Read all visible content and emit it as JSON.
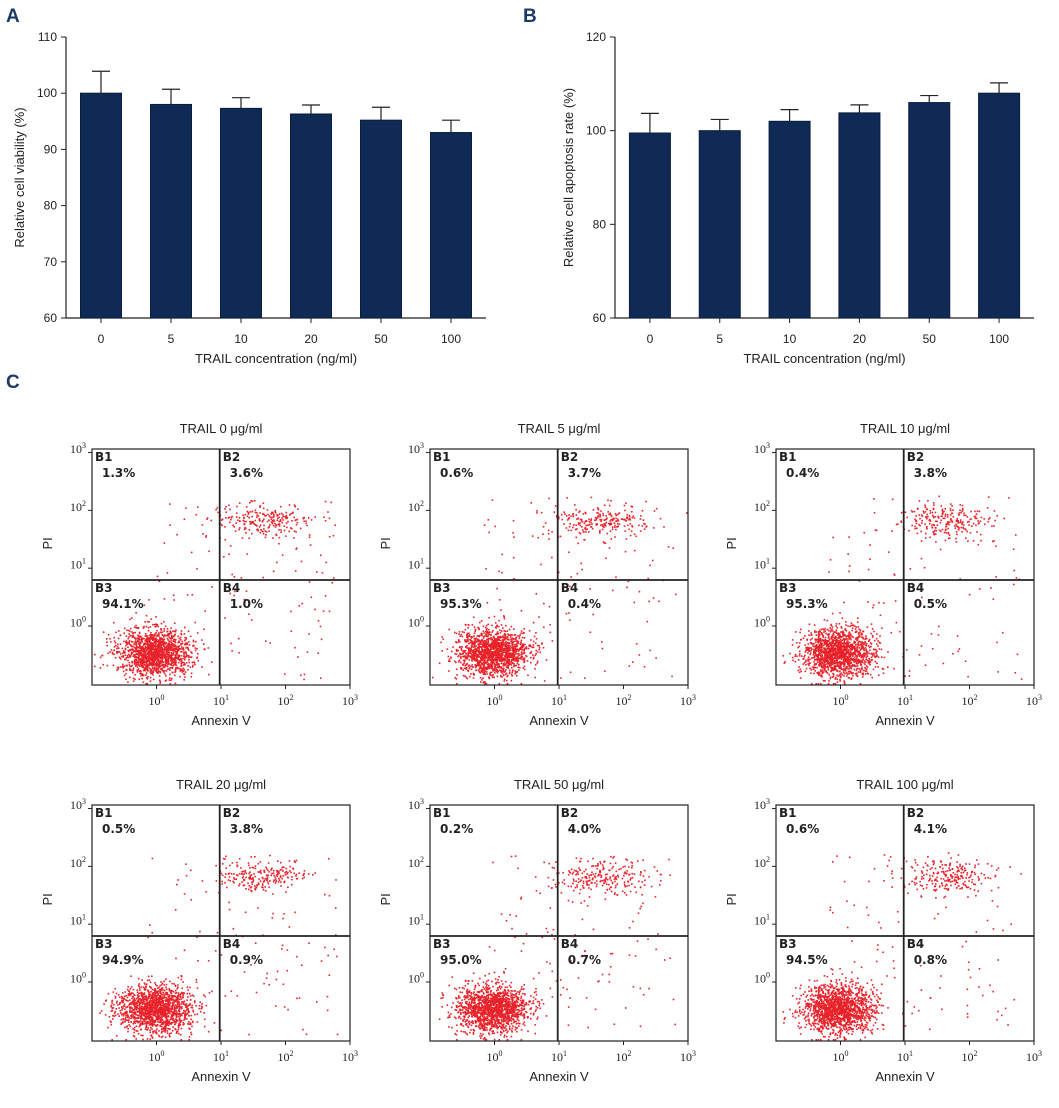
{
  "chart_data": [
    {
      "panel": "A",
      "type": "bar",
      "categories": [
        "0",
        "5",
        "10",
        "20",
        "50",
        "100"
      ],
      "values": [
        100,
        98,
        97.3,
        96.3,
        95.2,
        93
      ],
      "errors": [
        3.9,
        2.7,
        1.9,
        1.6,
        2.3,
        2.2
      ],
      "title": "",
      "xlabel": "TRAIL concentration (ng/ml)",
      "ylabel": "Relative cell viability (%)",
      "ylim": [
        60,
        110
      ],
      "yticks": [
        60,
        70,
        80,
        90,
        100,
        110
      ],
      "bar_color": "#0f2a55"
    },
    {
      "panel": "B",
      "type": "bar",
      "categories": [
        "0",
        "5",
        "10",
        "20",
        "50",
        "100"
      ],
      "values": [
        99.5,
        100,
        102,
        103.8,
        106,
        108
      ],
      "errors": [
        4.2,
        2.4,
        2.5,
        1.7,
        1.5,
        2.2
      ],
      "title": "",
      "xlabel": "TRAIL concentration (ng/ml)",
      "ylabel": "Relative cell apoptosis rate (%)",
      "ylim": [
        60,
        120
      ],
      "yticks": [
        60,
        80,
        100,
        120
      ],
      "bar_color": "#0f2a55"
    },
    {
      "panel": "C",
      "type": "scatter",
      "xlabel": "Annexin V",
      "ylabel": "PI",
      "point_color": "#e8222a",
      "decade_ticks": [
        {
          "base": "10",
          "exp": "0"
        },
        {
          "base": "10",
          "exp": "1"
        },
        {
          "base": "10",
          "exp": "2"
        },
        {
          "base": "10",
          "exp": "3"
        }
      ],
      "quadrant_labels": [
        "B1",
        "B2",
        "B3",
        "B4"
      ],
      "plots": [
        {
          "title": "TRAIL 0 μg/ml",
          "B1": "1.3%",
          "B2": "3.6%",
          "B3": "94.1%",
          "B4": "1.0%"
        },
        {
          "title": "TRAIL 5 μg/ml",
          "B1": "0.6%",
          "B2": "3.7%",
          "B3": "95.3%",
          "B4": "0.4%"
        },
        {
          "title": "TRAIL 10 μg/ml",
          "B1": "0.4%",
          "B2": "3.8%",
          "B3": "95.3%",
          "B4": "0.5%"
        },
        {
          "title": "TRAIL 20 μg/ml",
          "B1": "0.5%",
          "B2": "3.8%",
          "B3": "94.9%",
          "B4": "0.9%"
        },
        {
          "title": "TRAIL 50 μg/ml",
          "B1": "0.2%",
          "B2": "4.0%",
          "B3": "95.0%",
          "B4": "0.7%"
        },
        {
          "title": "TRAIL 100 μg/ml",
          "B1": "0.6%",
          "B2": "4.1%",
          "B3": "94.5%",
          "B4": "0.8%"
        }
      ]
    }
  ],
  "panels": {
    "a": "A",
    "b": "B",
    "c": "C"
  }
}
